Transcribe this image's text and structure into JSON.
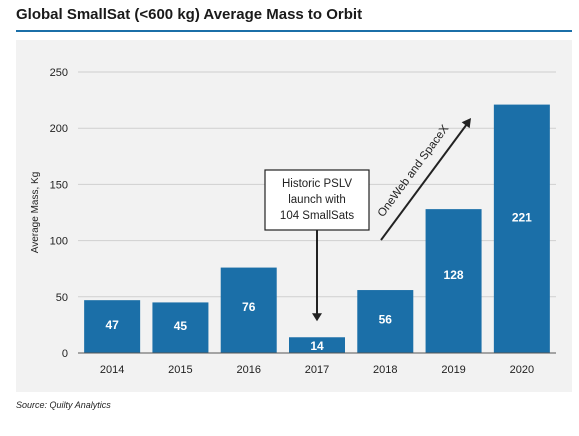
{
  "header": {
    "title": "Global SmallSat (<600 kg) Average Mass to Orbit"
  },
  "footer": {
    "source": "Source: Quilty Analytics"
  },
  "chart_data": {
    "type": "bar",
    "title": "Global SmallSat (<600 kg) Average Mass to Orbit",
    "ylabel": "Average Mass, Kg",
    "xlabel": "",
    "categories": [
      "2014",
      "2015",
      "2016",
      "2017",
      "2018",
      "2019",
      "2020"
    ],
    "values": [
      47,
      45,
      76,
      14,
      56,
      128,
      221
    ],
    "ylim": [
      0,
      250
    ],
    "yticks": [
      0,
      50,
      100,
      150,
      200,
      250
    ],
    "grid": true,
    "bar_color": "#1b6fa8",
    "annotations": [
      {
        "text_lines": [
          "Historic PSLV",
          "launch with",
          "104 SmallSats"
        ],
        "target_category": "2017"
      },
      {
        "text": "OneWeb and SpaceX"
      }
    ]
  }
}
